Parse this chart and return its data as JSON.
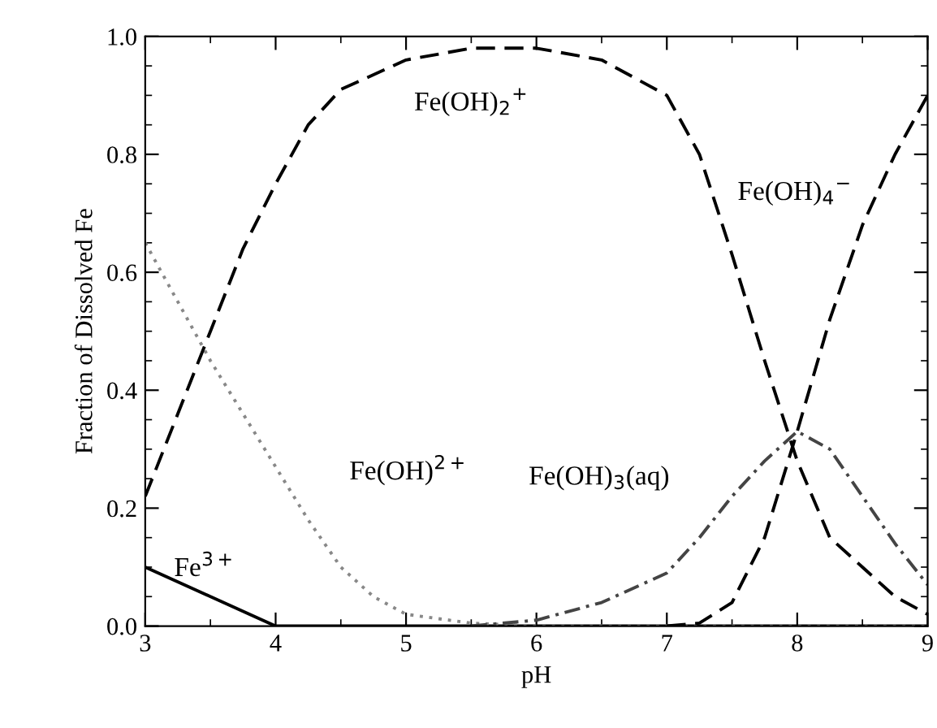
{
  "chart_data": {
    "type": "line",
    "xlabel": "pH",
    "ylabel": "Fraction of Dissolved Fe",
    "xlim": [
      3,
      9
    ],
    "ylim": [
      0,
      1
    ],
    "xticks": [
      3,
      4,
      5,
      6,
      7,
      8,
      9
    ],
    "yticks": [
      {
        "value": 0,
        "label": "0.0"
      },
      {
        "value": 0.2,
        "label": "0.2"
      },
      {
        "value": 0.4,
        "label": "0.4"
      },
      {
        "value": 0.6,
        "label": "0.6"
      },
      {
        "value": 0.8,
        "label": "0.8"
      },
      {
        "value": 1,
        "label": "1.0"
      }
    ],
    "grid": false,
    "legend": false,
    "series": [
      {
        "name": "Fe$^{3+}$",
        "color": "#000000",
        "line_style": "solid",
        "x": [
          3,
          3.5,
          4,
          5,
          6,
          7,
          8,
          9
        ],
        "values": [
          0.1,
          0.05,
          0,
          0,
          0,
          0,
          0,
          0
        ]
      },
      {
        "name": "Fe(OH)$^{2+}$",
        "color": "#888888",
        "line_style": "dotted",
        "x": [
          3,
          3.25,
          3.5,
          3.75,
          4,
          4.25,
          4.5,
          4.75,
          5,
          5.5,
          6,
          7,
          8,
          9
        ],
        "values": [
          0.65,
          0.55,
          0.45,
          0.36,
          0.27,
          0.18,
          0.1,
          0.05,
          0.02,
          0.005,
          0,
          0,
          0,
          0
        ]
      },
      {
        "name": "Fe(OH)$_{2}$$^{+}$",
        "color": "#000000",
        "line_style": "dashed",
        "x": [
          3,
          3.25,
          3.5,
          3.75,
          4,
          4.25,
          4.5,
          5,
          5.5,
          6,
          6.5,
          7,
          7.25,
          7.5,
          7.75,
          8,
          8.25,
          8.5,
          8.75,
          9
        ],
        "values": [
          0.22,
          0.36,
          0.5,
          0.64,
          0.75,
          0.85,
          0.91,
          0.96,
          0.98,
          0.98,
          0.96,
          0.9,
          0.8,
          0.63,
          0.45,
          0.28,
          0.15,
          0.1,
          0.05,
          0.02
        ]
      },
      {
        "name": "Fe(OH)$_{3}$(aq)",
        "color": "#444444",
        "line_style": "dashdot",
        "x": [
          5.5,
          6,
          6.5,
          7,
          7.25,
          7.5,
          7.75,
          8,
          8.25,
          8.5,
          8.75,
          9
        ],
        "values": [
          0,
          0.01,
          0.04,
          0.09,
          0.15,
          0.22,
          0.28,
          0.33,
          0.3,
          0.22,
          0.14,
          0.07
        ]
      },
      {
        "name": "Fe(OH)$_{4}$$^{−}$",
        "color": "#000000",
        "line_style": "dashed",
        "x": [
          7,
          7.25,
          7.5,
          7.75,
          8,
          8.25,
          8.5,
          8.75,
          9
        ],
        "values": [
          0,
          0.005,
          0.04,
          0.15,
          0.33,
          0.52,
          0.68,
          0.8,
          0.9
        ]
      }
    ]
  }
}
